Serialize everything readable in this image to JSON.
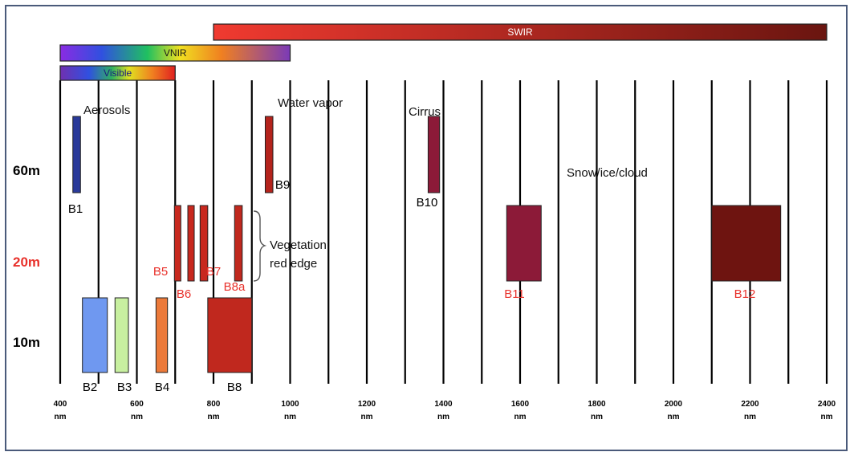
{
  "resolution_labels": [
    {
      "text": "60m",
      "color": "#000000"
    },
    {
      "text": "20m",
      "color": "#e8302a"
    },
    {
      "text": "10m",
      "color": "#000000"
    }
  ],
  "ranges": [
    {
      "id": "swir",
      "label": "SWIR",
      "start_nm": 800,
      "end_nm": 2400,
      "from": "#f03a30",
      "to": "#6a1510"
    },
    {
      "id": "vnir",
      "label": "VNIR",
      "start_nm": 400,
      "end_nm": 1000,
      "from": "#8a2be2",
      "to": "#8040c0"
    },
    {
      "id": "visible",
      "label": "Visible",
      "start_nm": 400,
      "end_nm": 700,
      "from": "#7030b0",
      "to": "#e02020"
    }
  ],
  "region_labels": [
    {
      "text": "Aerosols",
      "nm": 460,
      "row": "top"
    },
    {
      "text": "Water vapor",
      "nm": 930,
      "row": "top"
    },
    {
      "text": "Cirrus",
      "nm": 1390,
      "row": "top"
    },
    {
      "text": "Snow/ice/cloud",
      "nm": 1920,
      "row": "mid"
    },
    {
      "text": "Vegetation",
      "nm": 960,
      "row": "veg1"
    },
    {
      "text": "red edge",
      "nm": 960,
      "row": "veg2"
    }
  ],
  "bands": [
    {
      "name": "B1",
      "res": "60m",
      "start_nm": 433,
      "end_nm": 453,
      "color": "#2a3a9a",
      "label_color": "#000000"
    },
    {
      "name": "B2",
      "res": "10m",
      "start_nm": 458,
      "end_nm": 523,
      "color": "#6f98f0",
      "label_color": "#000000"
    },
    {
      "name": "B3",
      "res": "10m",
      "start_nm": 543,
      "end_nm": 578,
      "color": "#c8f0a0",
      "label_color": "#000000"
    },
    {
      "name": "B4",
      "res": "10m",
      "start_nm": 650,
      "end_nm": 680,
      "color": "#ec7a3a",
      "label_color": "#000000"
    },
    {
      "name": "B5",
      "res": "20m",
      "start_nm": 698,
      "end_nm": 713,
      "color": "#c8281e",
      "label_color": "#e8302a"
    },
    {
      "name": "B6",
      "res": "20m",
      "start_nm": 733,
      "end_nm": 748,
      "color": "#c8281e",
      "label_color": "#e8302a"
    },
    {
      "name": "B7",
      "res": "20m",
      "start_nm": 765,
      "end_nm": 785,
      "color": "#c8281e",
      "label_color": "#e8302a"
    },
    {
      "name": "B8",
      "res": "10m",
      "start_nm": 785,
      "end_nm": 900,
      "color": "#c0281e",
      "label_color": "#000000"
    },
    {
      "name": "B8a",
      "res": "20m",
      "start_nm": 855,
      "end_nm": 875,
      "color": "#c0281e",
      "label_color": "#e8302a"
    },
    {
      "name": "B9",
      "res": "60m",
      "start_nm": 935,
      "end_nm": 955,
      "color": "#b4231c",
      "label_color": "#000000"
    },
    {
      "name": "B10",
      "res": "60m",
      "start_nm": 1360,
      "end_nm": 1390,
      "color": "#8c1a38",
      "label_color": "#000000"
    },
    {
      "name": "B11",
      "res": "20m",
      "start_nm": 1565,
      "end_nm": 1655,
      "color": "#8c1a38",
      "label_color": "#e8302a"
    },
    {
      "name": "B12",
      "res": "20m",
      "start_nm": 2100,
      "end_nm": 2280,
      "color": "#6e1410",
      "label_color": "#e8302a"
    }
  ],
  "axis": {
    "min_nm": 400,
    "max_nm": 2400,
    "ticks": [
      400,
      600,
      800,
      1000,
      1200,
      1400,
      1600,
      1800,
      2000,
      2200,
      2400
    ],
    "minor_lines": [
      500,
      700,
      900,
      1100,
      1300,
      1500,
      1700,
      1900,
      2100,
      2300
    ],
    "unit": "nm"
  }
}
